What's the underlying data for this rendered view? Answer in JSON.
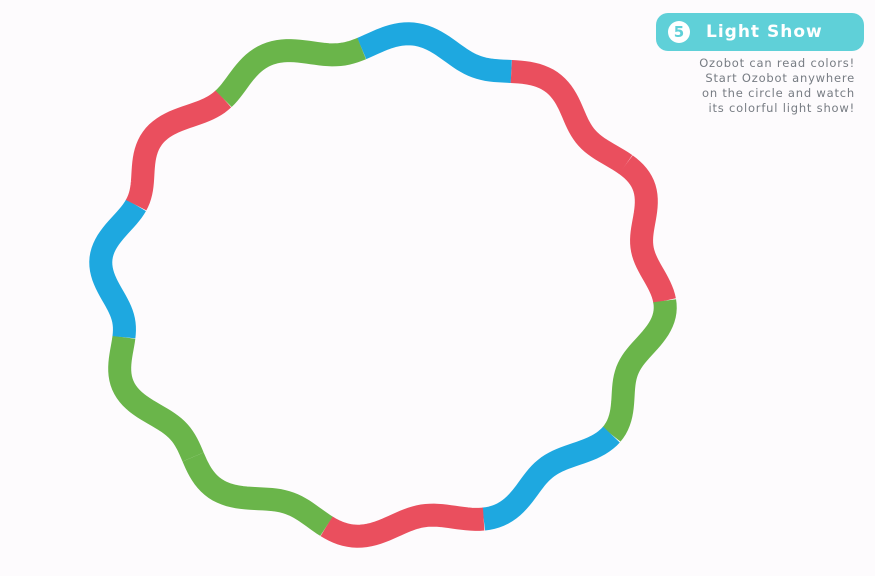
{
  "activity": {
    "number": "5",
    "title": "Light Show",
    "description_lines": [
      "Ozobot can read colors!",
      "Start Ozobot anywhere",
      "on the circle and watch",
      "its colorful light show!"
    ]
  },
  "track": {
    "segments": [
      {
        "color_name": "blue"
      },
      {
        "color_name": "red"
      },
      {
        "color_name": "red"
      },
      {
        "color_name": "green"
      },
      {
        "color_name": "blue"
      },
      {
        "color_name": "red"
      },
      {
        "color_name": "green"
      },
      {
        "color_name": "green"
      },
      {
        "color_name": "blue"
      },
      {
        "color_name": "red"
      },
      {
        "color_name": "green"
      }
    ]
  },
  "colors": {
    "blue": "#1ea8e0",
    "red": "#ea4f5e",
    "green": "#6ab54a",
    "badge": "#5fd0d8",
    "text": "#777c83"
  }
}
